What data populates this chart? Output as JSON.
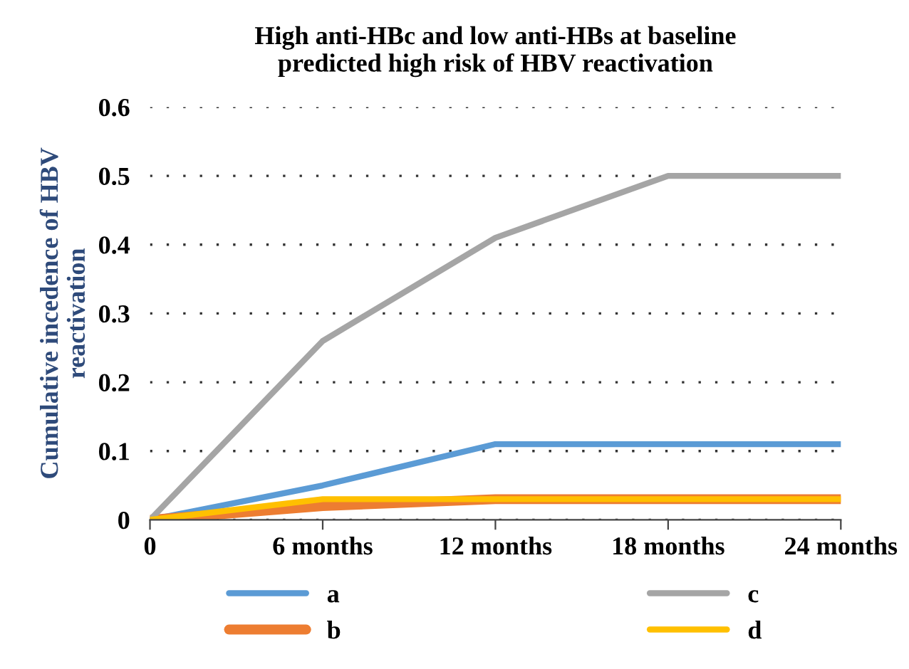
{
  "chart_data": {
    "type": "line",
    "title": "High anti-HBc and low anti-HBs at baseline\npredicted high risk of HBV reactivation",
    "ylabel": "Cumulative incedence of HBV\nreactivation",
    "categories": [
      "0",
      "6 months",
      "12 months",
      "18 months",
      "24 months"
    ],
    "series": [
      {
        "name": "a",
        "color": "#5b9bd5",
        "values": [
          0,
          0.05,
          0.11,
          0.11,
          0.11
        ]
      },
      {
        "name": "b",
        "color": "#ed7d31",
        "values": [
          0,
          0.02,
          0.03,
          0.03,
          0.03
        ]
      },
      {
        "name": "c",
        "color": "#a5a5a5",
        "values": [
          0,
          0.26,
          0.41,
          0.5,
          0.5
        ]
      },
      {
        "name": "d",
        "color": "#ffc000",
        "values": [
          0,
          0.03,
          0.03,
          0.03,
          0.03
        ]
      }
    ],
    "ylim": [
      0,
      0.6
    ],
    "yticks": [
      {
        "value": 0,
        "label": "0"
      },
      0.1,
      0.2,
      0.3,
      0.4,
      0.5,
      0.6
    ],
    "grid": "y",
    "legend": "bottom",
    "marker": "none",
    "line_style": "solid"
  }
}
